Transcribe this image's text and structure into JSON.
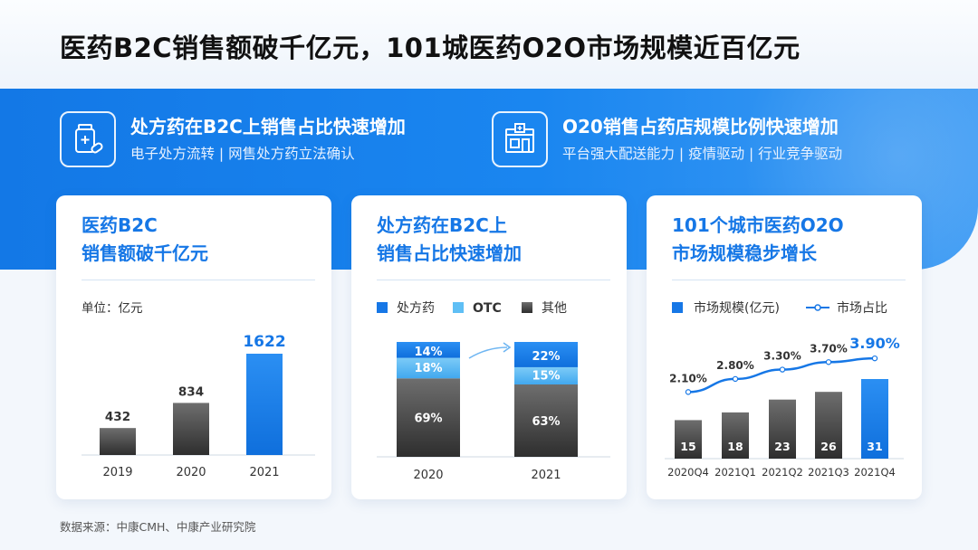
{
  "page": {
    "title": "医药B2C销售额破千亿元，101城医药O2O市场规模近百亿元",
    "source": "数据来源：中康CMH、中康产业研究院"
  },
  "features": [
    {
      "title": "处方药在B2C上销售占比快速增加",
      "subtitle": "电子处方流转 | 网售处方药立法确认",
      "icon": "medicine-bottle-icon"
    },
    {
      "title": "O20销售占药店规模比例快速增加",
      "subtitle": "平台强大配送能力 | 疫情驱动 | 行业竞争驱动",
      "icon": "pharmacy-store-icon"
    }
  ],
  "cards": [
    {
      "title_line1": "医药B2C",
      "title_line2": "销售额破千亿元",
      "unit_label": "单位：亿元"
    },
    {
      "title_line1": "处方药在B2C上",
      "title_line2": "销售占比快速增加"
    },
    {
      "title_line1": "101个城市医药O2O",
      "title_line2": "市场规模稳步增长"
    }
  ],
  "colors": {
    "blue": "#1677e6",
    "dark_bar": "#555555",
    "light_blue": "#5fbff5"
  },
  "chart_data": [
    {
      "type": "bar",
      "title": "医药B2C 销售额破千亿元",
      "ylabel": "单位：亿元",
      "categories": [
        "2019",
        "2020",
        "2021"
      ],
      "values": [
        432,
        834,
        1622
      ],
      "highlight_last": true
    },
    {
      "type": "bar",
      "stacked": true,
      "title": "处方药在B2C上 销售占比快速增加",
      "categories": [
        "2020",
        "2021"
      ],
      "legend": [
        "处方药",
        "OTC",
        "其他"
      ],
      "series": [
        {
          "name": "其他",
          "values": [
            69,
            63
          ],
          "labels": [
            "69%",
            "63%"
          ]
        },
        {
          "name": "OTC",
          "values": [
            18,
            15
          ],
          "labels": [
            "18%",
            "15%"
          ]
        },
        {
          "name": "处方药",
          "values": [
            14,
            22
          ],
          "labels": [
            "14%",
            "22%"
          ]
        }
      ]
    },
    {
      "type": "bar+line",
      "title": "101个城市医药O2O 市场规模稳步增长",
      "legend": [
        "市场规模(亿元)",
        "市场占比"
      ],
      "categories": [
        "2020Q4",
        "2021Q1",
        "2021Q2",
        "2021Q3",
        "2021Q4"
      ],
      "series": [
        {
          "name": "市场规模(亿元)",
          "values": [
            15,
            18,
            23,
            26,
            31
          ],
          "labels": [
            "15",
            "18",
            "23",
            "26",
            "31"
          ]
        },
        {
          "name": "市场占比",
          "values": [
            2.1,
            2.8,
            3.3,
            3.7,
            3.9
          ],
          "labels": [
            "2.10%",
            "2.80%",
            "3.30%",
            "3.70%",
            "3.90%"
          ]
        }
      ]
    }
  ]
}
